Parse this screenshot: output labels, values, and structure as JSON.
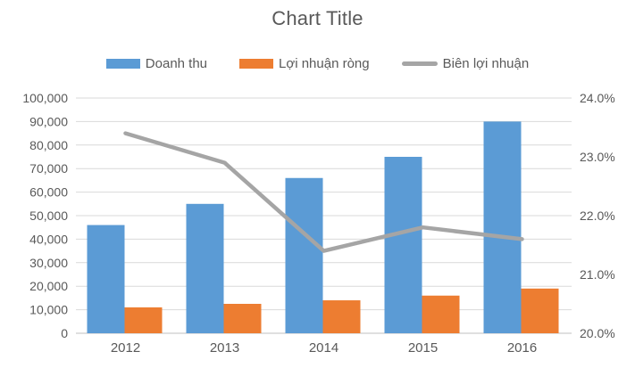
{
  "title": "Chart Title",
  "colors": {
    "bar_blue": "#5B9BD5",
    "bar_orange": "#ED7D31",
    "line_gray": "#A5A5A5",
    "gridline": "#D9D9D9",
    "axis_line": "#BFBFBF",
    "text": "#595959"
  },
  "chart_data": {
    "type": "combo",
    "title": "Chart Title",
    "categories": [
      "2012",
      "2013",
      "2014",
      "2015",
      "2016"
    ],
    "series": [
      {
        "name": "Doanh thu",
        "type": "bar",
        "axis": "left",
        "color": "#5B9BD5",
        "values": [
          46000,
          55000,
          66000,
          75000,
          90000
        ]
      },
      {
        "name": "Lợi nhuận ròng",
        "type": "bar",
        "axis": "left",
        "color": "#ED7D31",
        "values": [
          11000,
          12500,
          14000,
          16000,
          19000
        ]
      },
      {
        "name": "Biên lợi nhuận",
        "type": "line",
        "axis": "right",
        "color": "#A5A5A5",
        "values": [
          23.4,
          22.9,
          21.4,
          21.8,
          21.6
        ]
      }
    ],
    "left_axis": {
      "min": 0,
      "max": 100000,
      "step": 10000,
      "tick_values": [
        0,
        10000,
        20000,
        30000,
        40000,
        50000,
        60000,
        70000,
        80000,
        90000,
        100000
      ],
      "tick_labels": [
        "0",
        "10,000",
        "20,000",
        "30,000",
        "40,000",
        "50,000",
        "60,000",
        "70,000",
        "80,000",
        "90,000",
        "100,000"
      ]
    },
    "right_axis": {
      "min": 20,
      "max": 24,
      "step": 1,
      "tick_values": [
        20,
        21,
        22,
        23,
        24
      ],
      "tick_labels": [
        "20.0%",
        "21.0%",
        "22.0%",
        "23.0%",
        "24.0%"
      ]
    },
    "grid": true,
    "legend_position": "top",
    "xlabel": "",
    "ylabel": ""
  }
}
